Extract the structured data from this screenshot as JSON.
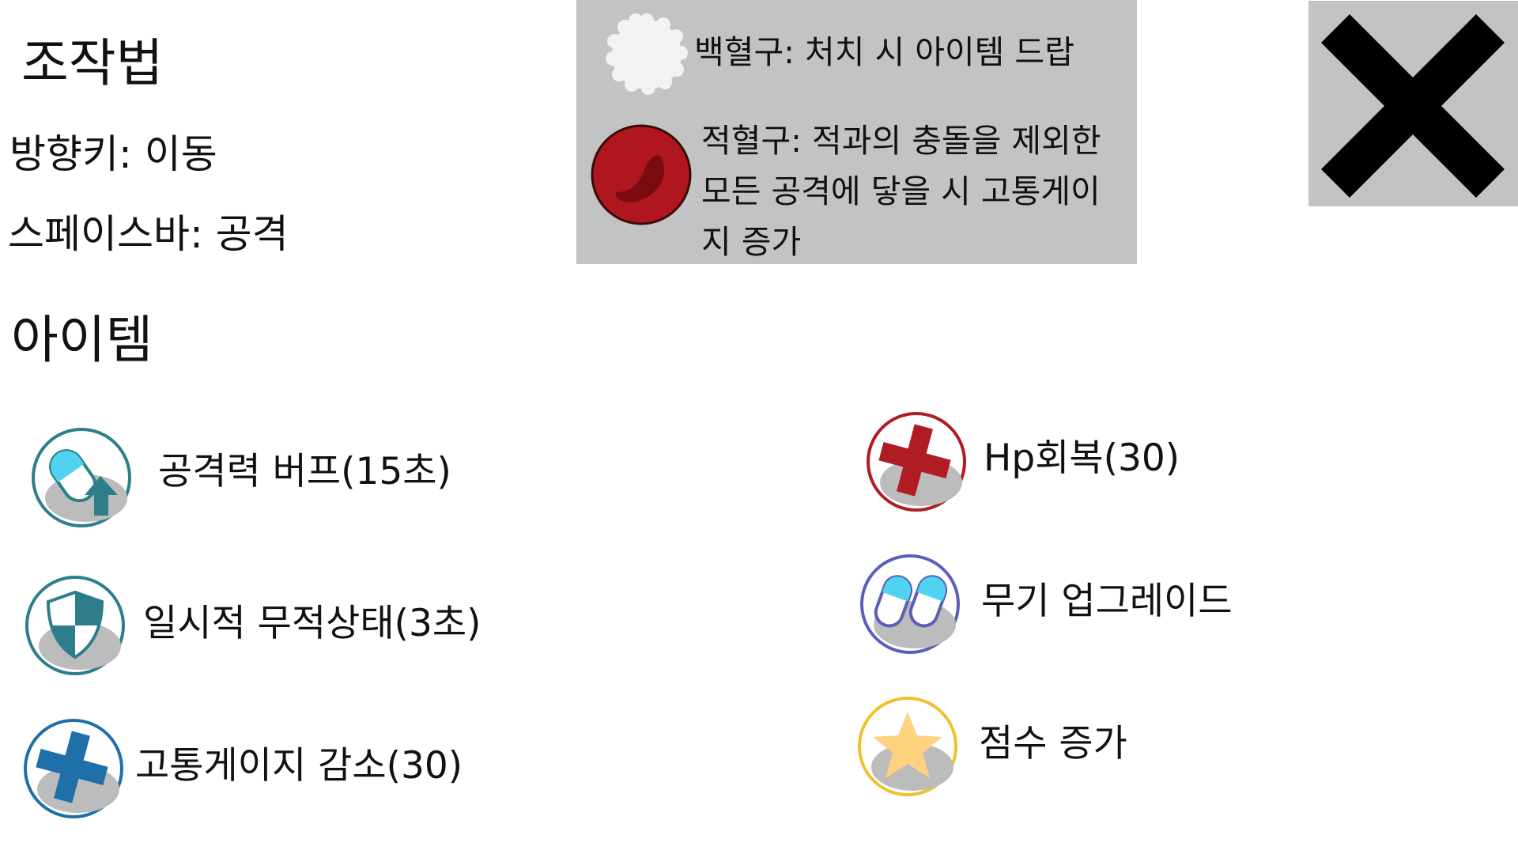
{
  "controls": {
    "title": "조작법",
    "move": "방향키: 이동",
    "attack": "스페이스바: 공격"
  },
  "info": {
    "wbc_label": "백혈구: 처치 시 아이템 드랍",
    "rbc_text": "적혈구: 적과의 충돌을 제외한 모든 공격에 닿을 시 고통게이지 증가"
  },
  "close_button": {
    "icon": "close-icon"
  },
  "items": {
    "title": "아이템",
    "attack_buff": "공격력 버프(15초)",
    "invincible": "일시적 무적상태(3초)",
    "pain_decrease": "고통게이지 감소(30)",
    "hp_heal": "Hp회복(30)",
    "weapon_upgrade": "무기 업그레이드",
    "score_up": "점수 증가"
  },
  "colors": {
    "panel_gray": "#c3c3c3",
    "teal": "#2d7d8a",
    "blue": "#1f6fa8",
    "red": "#b01c24",
    "purple": "#5b5fb8",
    "gold": "#f0c030"
  }
}
